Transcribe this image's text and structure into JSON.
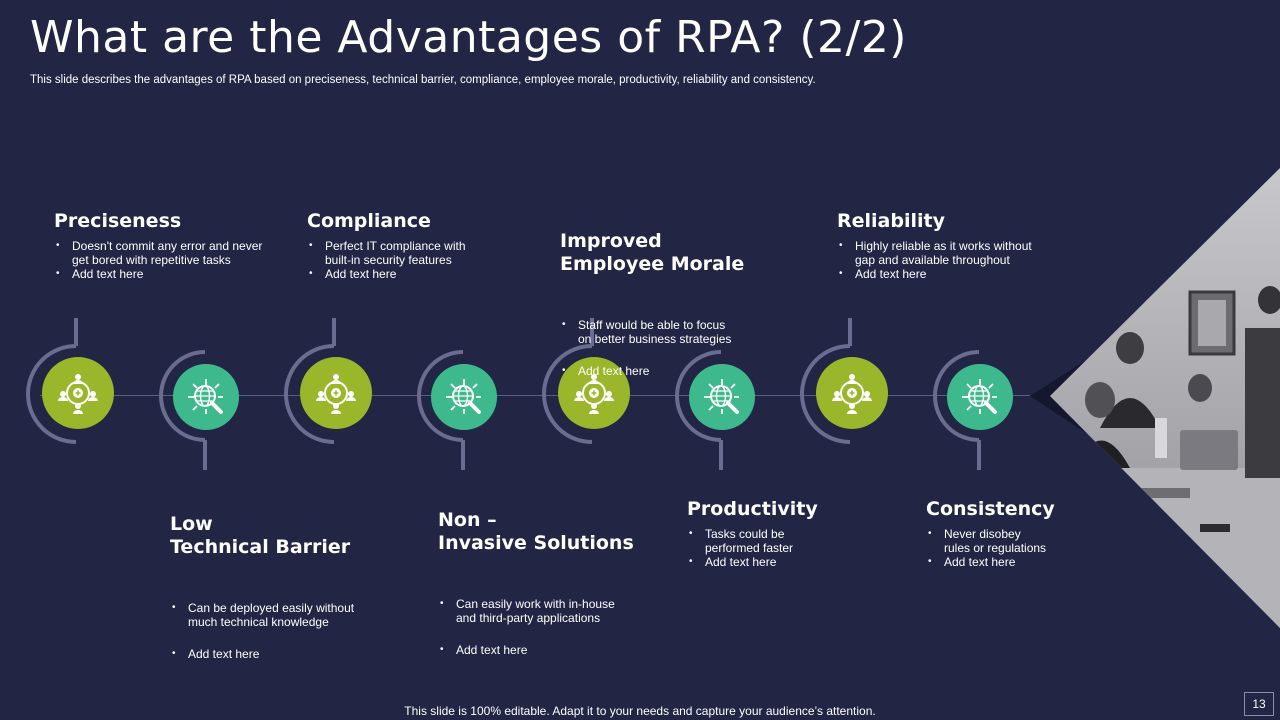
{
  "header": {
    "title": "What are the Advantages of RPA? (2/2)",
    "subtitle": "This slide describes the advantages of RPA based on preciseness, technical barrier, compliance, employee morale, productivity, reliability and consistency."
  },
  "top_items": [
    {
      "title": "Preciseness",
      "bullets": [
        "Doesn't commit any error and never\nget bored with repetitive tasks",
        "Add text here"
      ]
    },
    {
      "title": "Compliance",
      "bullets": [
        "Perfect IT compliance with\nbuilt-in security features",
        "Add text here"
      ]
    },
    {
      "title": "Improved\nEmployee Morale",
      "bullets": [
        "Staff would be able to focus\non better business strategies",
        "Add text here"
      ]
    },
    {
      "title": "Reliability",
      "bullets": [
        "Highly reliable as it works without\ngap and available throughout",
        "Add text here"
      ]
    }
  ],
  "bottom_items": [
    {
      "title": "Low\nTechnical Barrier",
      "bullets": [
        "Can be deployed easily without\nmuch technical knowledge",
        "Add text here"
      ]
    },
    {
      "title": "Non –\nInvasive Solutions",
      "bullets": [
        "Can easily work with in-house\nand third-party applications",
        "Add text here"
      ]
    },
    {
      "title": "Productivity",
      "bullets": [
        "Tasks could be\nperformed faster",
        "Add text here"
      ]
    },
    {
      "title": "Consistency",
      "bullets": [
        "Never disobey\nrules or regulations",
        "Add text here"
      ]
    }
  ],
  "icons": {
    "green_node": "people-network-icon",
    "teal_node": "globe-search-icon"
  },
  "colors": {
    "background": "#222544",
    "green": "#9ab72b",
    "teal": "#3eb98e",
    "arc": "#6a6d90"
  },
  "footer": {
    "text": "This slide is 100% editable. Adapt it to your needs and capture your audience’s attention.",
    "page_number": "13"
  }
}
